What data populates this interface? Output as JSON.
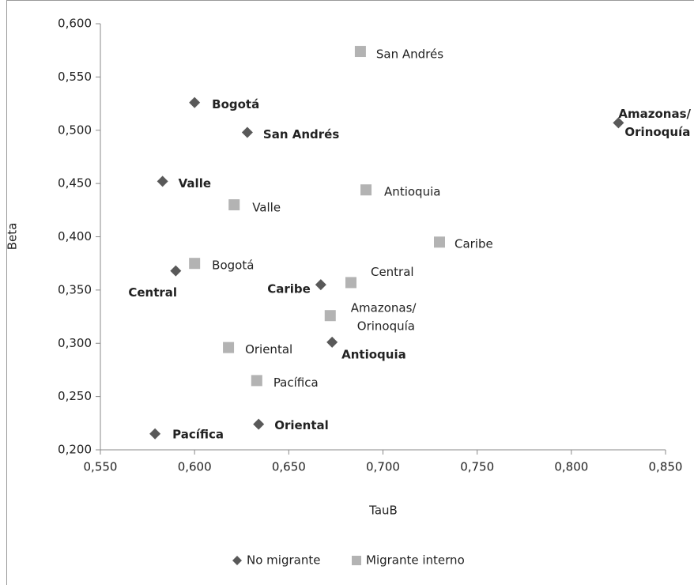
{
  "chart_data": {
    "type": "scatter",
    "xlabel": "TauB",
    "ylabel": "Beta",
    "xlim": [
      0.55,
      0.85
    ],
    "xticks": [
      {
        "value": 0.55,
        "label": "0,550"
      },
      {
        "value": 0.6,
        "label": "0,600"
      },
      {
        "value": 0.65,
        "label": "0,650"
      },
      {
        "value": 0.7,
        "label": "0,700"
      },
      {
        "value": 0.75,
        "label": "0,750"
      },
      {
        "value": 0.8,
        "label": "0,800"
      },
      {
        "value": 0.85,
        "label": "0,850"
      }
    ],
    "ylim": [
      0.2,
      0.6
    ],
    "yticks": [
      {
        "value": 0.2,
        "label": "0,200"
      },
      {
        "value": 0.25,
        "label": "0,250"
      },
      {
        "value": 0.3,
        "label": "0,300"
      },
      {
        "value": 0.35,
        "label": "0,350"
      },
      {
        "value": 0.4,
        "label": "0,400"
      },
      {
        "value": 0.45,
        "label": "0,450"
      },
      {
        "value": 0.5,
        "label": "0,500"
      },
      {
        "value": 0.55,
        "label": "0,550"
      },
      {
        "value": 0.6,
        "label": "0,600"
      }
    ],
    "legend": "bottom",
    "series": [
      {
        "name": "No migrante",
        "color": "#595959",
        "marker": "diamond",
        "labels": [
          "Bogotá",
          "San Andrés",
          "Valle",
          "Central",
          "Caribe",
          "Antioquia",
          "Oriental",
          "Pacífica",
          [
            "Amazonas/",
            "Orinoquía"
          ]
        ],
        "x": [
          0.6,
          0.628,
          0.583,
          0.59,
          0.667,
          0.673,
          0.634,
          0.579,
          0.825
        ],
        "values": [
          0.526,
          0.498,
          0.452,
          0.368,
          0.355,
          0.301,
          0.224,
          0.215,
          0.507
        ]
      },
      {
        "name": "Migrante interno",
        "color": "#b3b3b3",
        "marker": "square",
        "labels": [
          "San Andrés",
          "Antioquia",
          "Valle",
          "Caribe",
          "Bogotá",
          "Central",
          [
            "Amazonas/",
            "Orinoquía"
          ],
          "Oriental",
          "Pacífica"
        ],
        "x": [
          0.688,
          0.691,
          0.621,
          0.73,
          0.6,
          0.683,
          0.672,
          0.618,
          0.633
        ],
        "values": [
          0.574,
          0.444,
          0.43,
          0.395,
          0.375,
          0.357,
          0.326,
          0.296,
          0.265
        ]
      }
    ]
  }
}
